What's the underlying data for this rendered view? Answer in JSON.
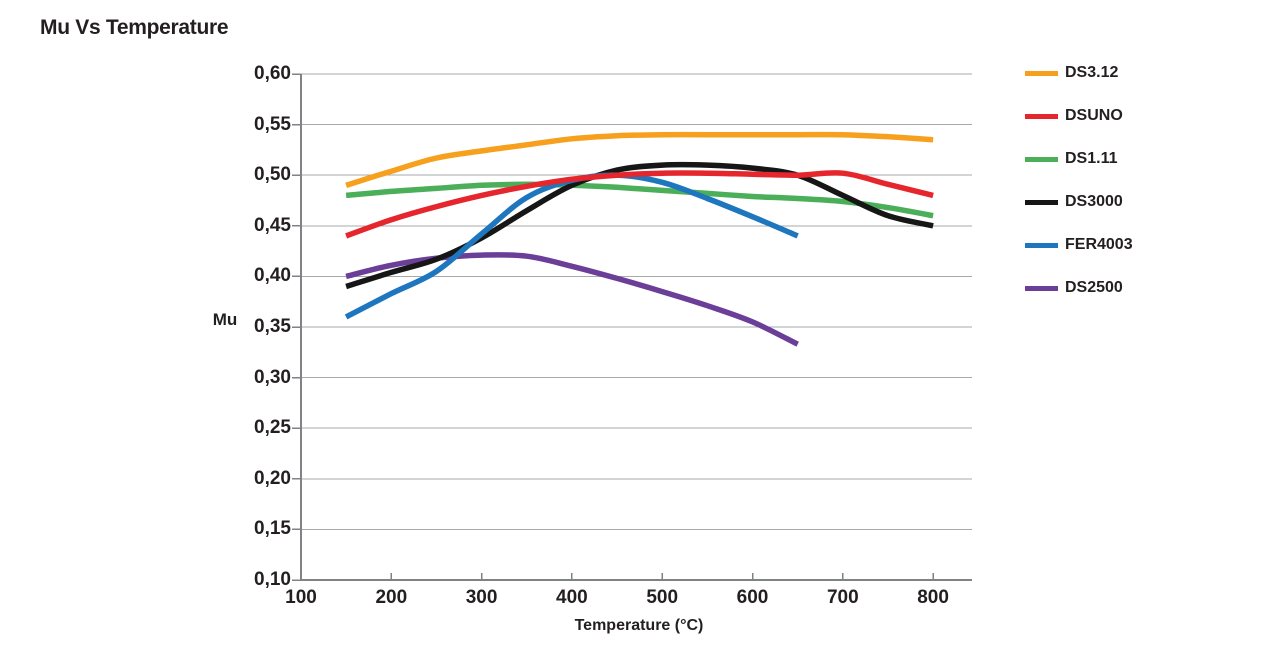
{
  "title": "Mu Vs Temperature",
  "chart_data": {
    "type": "line",
    "title": "Mu Vs Temperature",
    "xlabel": "Temperature (°C)",
    "ylabel": "Mu",
    "xlim": [
      100,
      845
    ],
    "ylim": [
      0.1,
      0.6
    ],
    "grid": "horizontal",
    "legend_position": "right",
    "x_ticks": [
      100,
      200,
      300,
      400,
      500,
      600,
      700,
      800
    ],
    "x_tick_labels": [
      "100",
      "200",
      "300",
      "400",
      "500",
      "600",
      "700",
      "800"
    ],
    "y_ticks": [
      0.1,
      0.15,
      0.2,
      0.25,
      0.3,
      0.35,
      0.4,
      0.45,
      0.5,
      0.55,
      0.6
    ],
    "y_tick_labels": [
      "0,10",
      "0,15",
      "0,20",
      "0,25",
      "0,30",
      "0,35",
      "0,40",
      "0,45",
      "0,50",
      "0,55",
      "0,60"
    ],
    "x": [
      150,
      200,
      250,
      300,
      350,
      400,
      450,
      500,
      550,
      600,
      650,
      700,
      750,
      800
    ],
    "series": [
      {
        "name": "DS3.12",
        "color": "#F6A01E",
        "values": [
          0.49,
          0.504,
          0.517,
          0.524,
          0.53,
          0.536,
          0.539,
          0.54,
          0.54,
          0.54,
          0.54,
          0.54,
          0.538,
          0.535
        ]
      },
      {
        "name": "DSUNO",
        "color": "#E5262D",
        "values": [
          0.44,
          0.456,
          0.469,
          0.48,
          0.489,
          0.496,
          0.5,
          0.502,
          0.502,
          0.501,
          0.5,
          0.502,
          0.491,
          0.48
        ]
      },
      {
        "name": "DS1.11",
        "color": "#4BAE59",
        "values": [
          0.48,
          0.484,
          0.487,
          0.49,
          0.491,
          0.49,
          0.488,
          0.485,
          0.482,
          0.479,
          0.477,
          0.474,
          0.468,
          0.46
        ]
      },
      {
        "name": "DS3000",
        "color": "#161616",
        "values": [
          0.39,
          0.404,
          0.417,
          0.438,
          0.465,
          0.49,
          0.505,
          0.51,
          0.51,
          0.507,
          0.5,
          0.48,
          0.46,
          0.45
        ]
      },
      {
        "name": "FER4003",
        "color": "#1D76BE",
        "values": [
          0.36,
          0.383,
          0.405,
          0.442,
          0.478,
          0.495,
          0.5,
          0.493,
          0.477,
          0.459,
          0.44
        ]
      },
      {
        "name": "DS2500",
        "color": "#6B3E98",
        "values": [
          0.4,
          0.411,
          0.418,
          0.421,
          0.42,
          0.41,
          0.398,
          0.385,
          0.371,
          0.355,
          0.333
        ]
      }
    ],
    "draw_order": [
      "DS1.11",
      "DS3.12",
      "DS2500",
      "DS3000",
      "FER4003",
      "DSUNO"
    ],
    "colors": {
      "grid": "#A7A9AC",
      "axis": "#808285",
      "text": "#231F20",
      "background": "#FFFFFF"
    }
  }
}
